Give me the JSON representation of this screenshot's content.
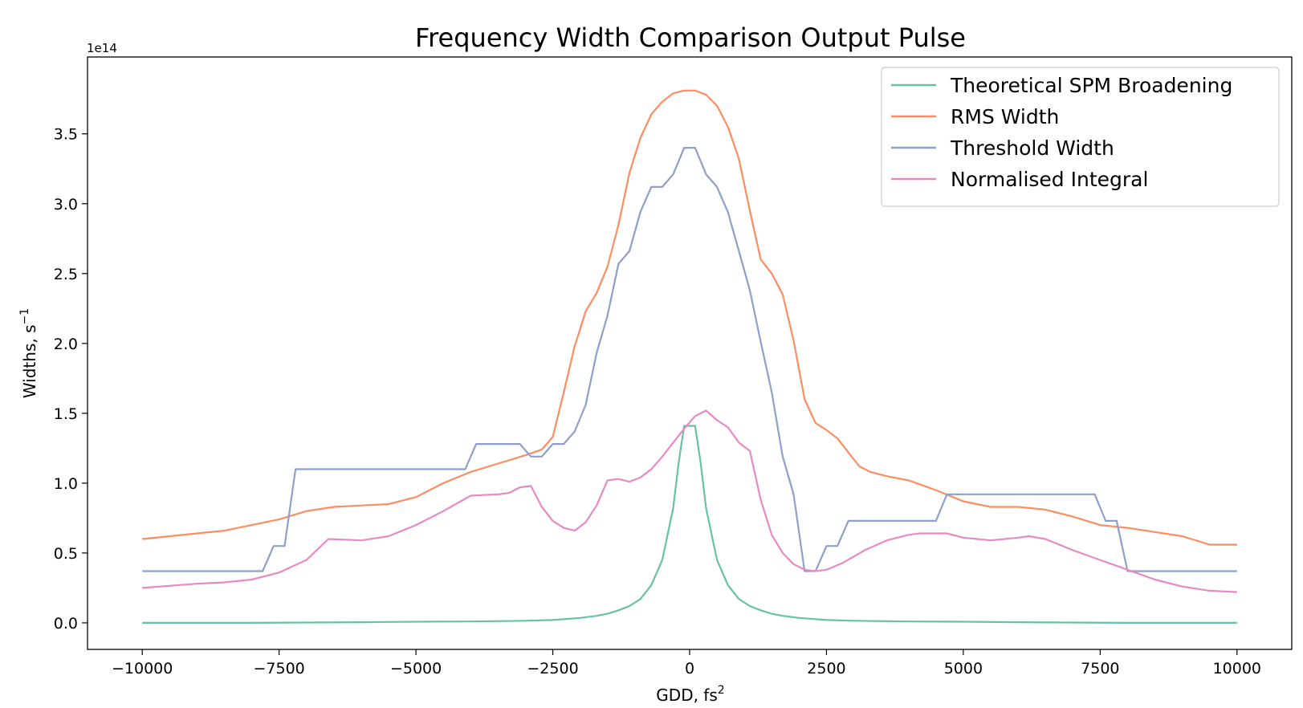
{
  "chart_data": {
    "type": "line",
    "title": "Frequency Width Comparison Output Pulse",
    "xlabel": "GDD, fs",
    "xlabel_sup": "2",
    "ylabel": "Widths, s",
    "ylabel_sup": "−1",
    "y_offset_text": "1e14",
    "xlim": [
      -11000,
      11000
    ],
    "ylim": [
      -0.19,
      4.05
    ],
    "y_scale_factor": 100000000000000.0,
    "x_ticks": [
      -10000,
      -7500,
      -5000,
      -2500,
      0,
      2500,
      5000,
      7500,
      10000
    ],
    "x_tick_labels": [
      "−10000",
      "−7500",
      "−5000",
      "−2500",
      "0",
      "2500",
      "5000",
      "7500",
      "10000"
    ],
    "y_ticks": [
      0.0,
      0.5,
      1.0,
      1.5,
      2.0,
      2.5,
      3.0,
      3.5
    ],
    "y_tick_labels": [
      "0.0",
      "0.5",
      "1.0",
      "1.5",
      "2.0",
      "2.5",
      "3.0",
      "3.5"
    ],
    "grid": false,
    "legend_position": "top-right",
    "series": [
      {
        "name": "Theoretical SPM Broadening",
        "color": "#66c2a5",
        "x": [
          -10000,
          -8000,
          -6000,
          -5000,
          -4000,
          -3000,
          -2500,
          -2000,
          -1700,
          -1500,
          -1300,
          -1100,
          -900,
          -700,
          -500,
          -300,
          -200,
          -100,
          0,
          100,
          200,
          300,
          500,
          700,
          900,
          1100,
          1300,
          1500,
          1700,
          2000,
          2500,
          3000,
          4000,
          5000,
          6000,
          8000,
          10000
        ],
        "y": [
          0.0,
          0.0,
          0.005,
          0.008,
          0.01,
          0.015,
          0.02,
          0.035,
          0.05,
          0.065,
          0.09,
          0.12,
          0.17,
          0.27,
          0.45,
          0.82,
          1.15,
          1.41,
          1.41,
          1.41,
          1.15,
          0.82,
          0.45,
          0.27,
          0.17,
          0.12,
          0.09,
          0.065,
          0.05,
          0.035,
          0.02,
          0.015,
          0.01,
          0.008,
          0.005,
          0.0,
          0.0
        ]
      },
      {
        "name": "RMS Width",
        "color": "#fc8d62",
        "x": [
          -10000,
          -9500,
          -9000,
          -8500,
          -8000,
          -7500,
          -7000,
          -6500,
          -6000,
          -5500,
          -5000,
          -4500,
          -4000,
          -3500,
          -3000,
          -2700,
          -2500,
          -2300,
          -2100,
          -1900,
          -1700,
          -1500,
          -1300,
          -1100,
          -900,
          -700,
          -500,
          -300,
          -100,
          100,
          300,
          500,
          700,
          900,
          1100,
          1300,
          1500,
          1700,
          1900,
          2100,
          2300,
          2500,
          2700,
          2900,
          3100,
          3300,
          3600,
          4000,
          4500,
          5000,
          5500,
          6000,
          6500,
          7000,
          7500,
          8000,
          8500,
          9000,
          9500,
          10000
        ],
        "y": [
          0.6,
          0.62,
          0.64,
          0.66,
          0.7,
          0.74,
          0.8,
          0.83,
          0.84,
          0.85,
          0.9,
          1.0,
          1.08,
          1.14,
          1.2,
          1.24,
          1.33,
          1.65,
          1.98,
          2.23,
          2.36,
          2.55,
          2.85,
          3.22,
          3.47,
          3.64,
          3.73,
          3.79,
          3.81,
          3.81,
          3.78,
          3.7,
          3.55,
          3.32,
          2.95,
          2.6,
          2.5,
          2.35,
          2.02,
          1.6,
          1.43,
          1.38,
          1.32,
          1.22,
          1.12,
          1.08,
          1.05,
          1.02,
          0.95,
          0.87,
          0.83,
          0.83,
          0.81,
          0.76,
          0.7,
          0.68,
          0.65,
          0.62,
          0.56,
          0.56
        ]
      },
      {
        "name": "Threshold Width",
        "color": "#8da0cb",
        "x": [
          -10000,
          -7800,
          -7600,
          -7400,
          -7200,
          -4100,
          -3900,
          -3100,
          -2900,
          -2700,
          -2500,
          -2300,
          -2100,
          -1900,
          -1700,
          -1500,
          -1300,
          -1100,
          -900,
          -700,
          -500,
          -300,
          -100,
          100,
          300,
          500,
          700,
          900,
          1100,
          1300,
          1500,
          1700,
          1900,
          2100,
          2300,
          2500,
          2700,
          2900,
          4500,
          4700,
          7400,
          7600,
          7800,
          8000,
          10000
        ],
        "y": [
          0.37,
          0.37,
          0.55,
          0.55,
          1.1,
          1.1,
          1.28,
          1.28,
          1.19,
          1.19,
          1.28,
          1.28,
          1.37,
          1.56,
          1.93,
          2.2,
          2.57,
          2.66,
          2.94,
          3.12,
          3.12,
          3.21,
          3.4,
          3.4,
          3.21,
          3.12,
          2.94,
          2.66,
          2.38,
          2.01,
          1.65,
          1.19,
          0.92,
          0.37,
          0.37,
          0.55,
          0.55,
          0.73,
          0.73,
          0.92,
          0.92,
          0.73,
          0.73,
          0.37,
          0.37
        ]
      },
      {
        "name": "Normalised Integral",
        "color": "#e78ac3",
        "x": [
          -10000,
          -9000,
          -8500,
          -8000,
          -7500,
          -7000,
          -6600,
          -6000,
          -5500,
          -5000,
          -4500,
          -4000,
          -3500,
          -3300,
          -3100,
          -2900,
          -2700,
          -2500,
          -2300,
          -2100,
          -1900,
          -1700,
          -1500,
          -1300,
          -1100,
          -900,
          -700,
          -500,
          -300,
          -100,
          100,
          300,
          500,
          700,
          900,
          1100,
          1300,
          1500,
          1700,
          1900,
          2100,
          2300,
          2500,
          2800,
          3200,
          3600,
          4000,
          4200,
          4700,
          5000,
          5500,
          6000,
          6200,
          6500,
          7000,
          7500,
          8000,
          8500,
          9000,
          9500,
          10000
        ],
        "y": [
          0.25,
          0.28,
          0.29,
          0.31,
          0.36,
          0.45,
          0.6,
          0.59,
          0.62,
          0.7,
          0.8,
          0.91,
          0.92,
          0.93,
          0.97,
          0.98,
          0.83,
          0.73,
          0.68,
          0.66,
          0.72,
          0.84,
          1.02,
          1.03,
          1.01,
          1.04,
          1.1,
          1.19,
          1.29,
          1.39,
          1.48,
          1.52,
          1.45,
          1.4,
          1.29,
          1.23,
          0.88,
          0.63,
          0.5,
          0.42,
          0.38,
          0.37,
          0.38,
          0.43,
          0.52,
          0.59,
          0.63,
          0.64,
          0.64,
          0.61,
          0.59,
          0.61,
          0.62,
          0.6,
          0.52,
          0.45,
          0.38,
          0.31,
          0.26,
          0.23,
          0.22
        ]
      }
    ]
  }
}
